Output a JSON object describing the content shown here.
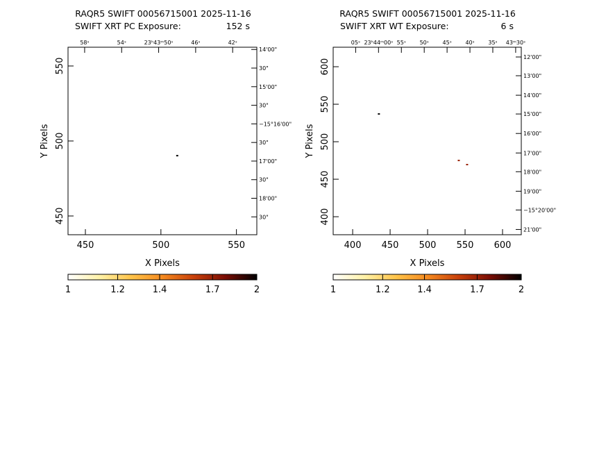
{
  "chart_data": [
    {
      "type": "image",
      "title": "RAQR5 SWIFT 00056715001 2025-11-16",
      "subtitle": "SWIFT XRT PC Exposure:",
      "exposure": "152 s",
      "xlabel": "X Pixels",
      "ylabel": "Y Pixels",
      "xlim": [
        438.5,
        563.5
      ],
      "ylim": [
        437.5,
        562.5
      ],
      "xticks": [
        450,
        500,
        550
      ],
      "yticks": [
        450,
        500,
        550
      ],
      "x2ticks": [
        {
          "value": 449.5,
          "label": "58ˢ"
        },
        {
          "value": 474,
          "label": "54ˢ"
        },
        {
          "value": 498.5,
          "label": "23ʰ43ᵐ50ˢ"
        },
        {
          "value": 523,
          "label": "46ˢ"
        },
        {
          "value": 547.5,
          "label": "42ˢ"
        }
      ],
      "y2ticks": [
        {
          "value": 561,
          "label": "14'00\""
        },
        {
          "value": 548.6,
          "label": "30\""
        },
        {
          "value": 536.2,
          "label": "15'00\""
        },
        {
          "value": 523.8,
          "label": "30\""
        },
        {
          "value": 511.4,
          "label": "−15°16'00\""
        },
        {
          "value": 499,
          "label": "30\""
        },
        {
          "value": 486.6,
          "label": "17'00\""
        },
        {
          "value": 474.2,
          "label": "30\""
        },
        {
          "value": 461.8,
          "label": "18'00\""
        },
        {
          "value": 449.4,
          "label": "30\""
        }
      ],
      "points": {
        "x": [
          510.8
        ],
        "y": [
          490.2
        ],
        "values": [
          2
        ]
      },
      "colorbar": {
        "clim": [
          1,
          2
        ],
        "scale": "log",
        "ticks": [
          1,
          1.2,
          1.4,
          1.7,
          2
        ],
        "colormap": [
          "#ffffff",
          "#fff2a8",
          "#ffc44a",
          "#f58a1f",
          "#c8400a",
          "#7a0d05",
          "#000000"
        ]
      }
    },
    {
      "type": "image",
      "title": "RAQR5 SWIFT 00056715001 2025-11-16",
      "subtitle": "SWIFT XRT WT Exposure:",
      "exposure": "6 s",
      "xlabel": "X Pixels",
      "ylabel": "Y Pixels",
      "xlim": [
        374,
        625
      ],
      "ylim": [
        376,
        626
      ],
      "xticks": [
        400,
        450,
        500,
        550,
        600
      ],
      "yticks": [
        400,
        450,
        500,
        550,
        600
      ],
      "x2ticks": [
        {
          "value": 404,
          "label": "05ˢ"
        },
        {
          "value": 434.5,
          "label": "23ʰ44ᵐ00ˢ"
        },
        {
          "value": 465,
          "label": "55ˢ"
        },
        {
          "value": 495.5,
          "label": "50ˢ"
        },
        {
          "value": 526,
          "label": "45ˢ"
        },
        {
          "value": 556.5,
          "label": "40ˢ"
        },
        {
          "value": 587,
          "label": "35ˢ"
        },
        {
          "value": 617.5,
          "label": "43ᵐ30ˢ"
        }
      ],
      "y2ticks": [
        {
          "value": 613,
          "label": "12'00\""
        },
        {
          "value": 588,
          "label": "13'00\""
        },
        {
          "value": 562,
          "label": "14'00\""
        },
        {
          "value": 537,
          "label": "15'00\""
        },
        {
          "value": 511,
          "label": "16'00\""
        },
        {
          "value": 485,
          "label": "17'00\""
        },
        {
          "value": 460,
          "label": "18'00\""
        },
        {
          "value": 434,
          "label": "19'00\""
        },
        {
          "value": 409,
          "label": "−15°20'00\""
        },
        {
          "value": 383,
          "label": "21'00\""
        }
      ],
      "points": {
        "x": [
          435,
          541.6,
          552.7
        ],
        "y": [
          537,
          475,
          469.5
        ],
        "values": [
          2,
          1.7,
          1.7
        ]
      },
      "colorbar": {
        "clim": [
          1,
          2
        ],
        "scale": "log",
        "ticks": [
          1,
          1.2,
          1.4,
          1.7,
          2
        ],
        "colormap": [
          "#ffffff",
          "#fff2a8",
          "#ffc44a",
          "#f58a1f",
          "#c8400a",
          "#7a0d05",
          "#000000"
        ]
      }
    }
  ]
}
